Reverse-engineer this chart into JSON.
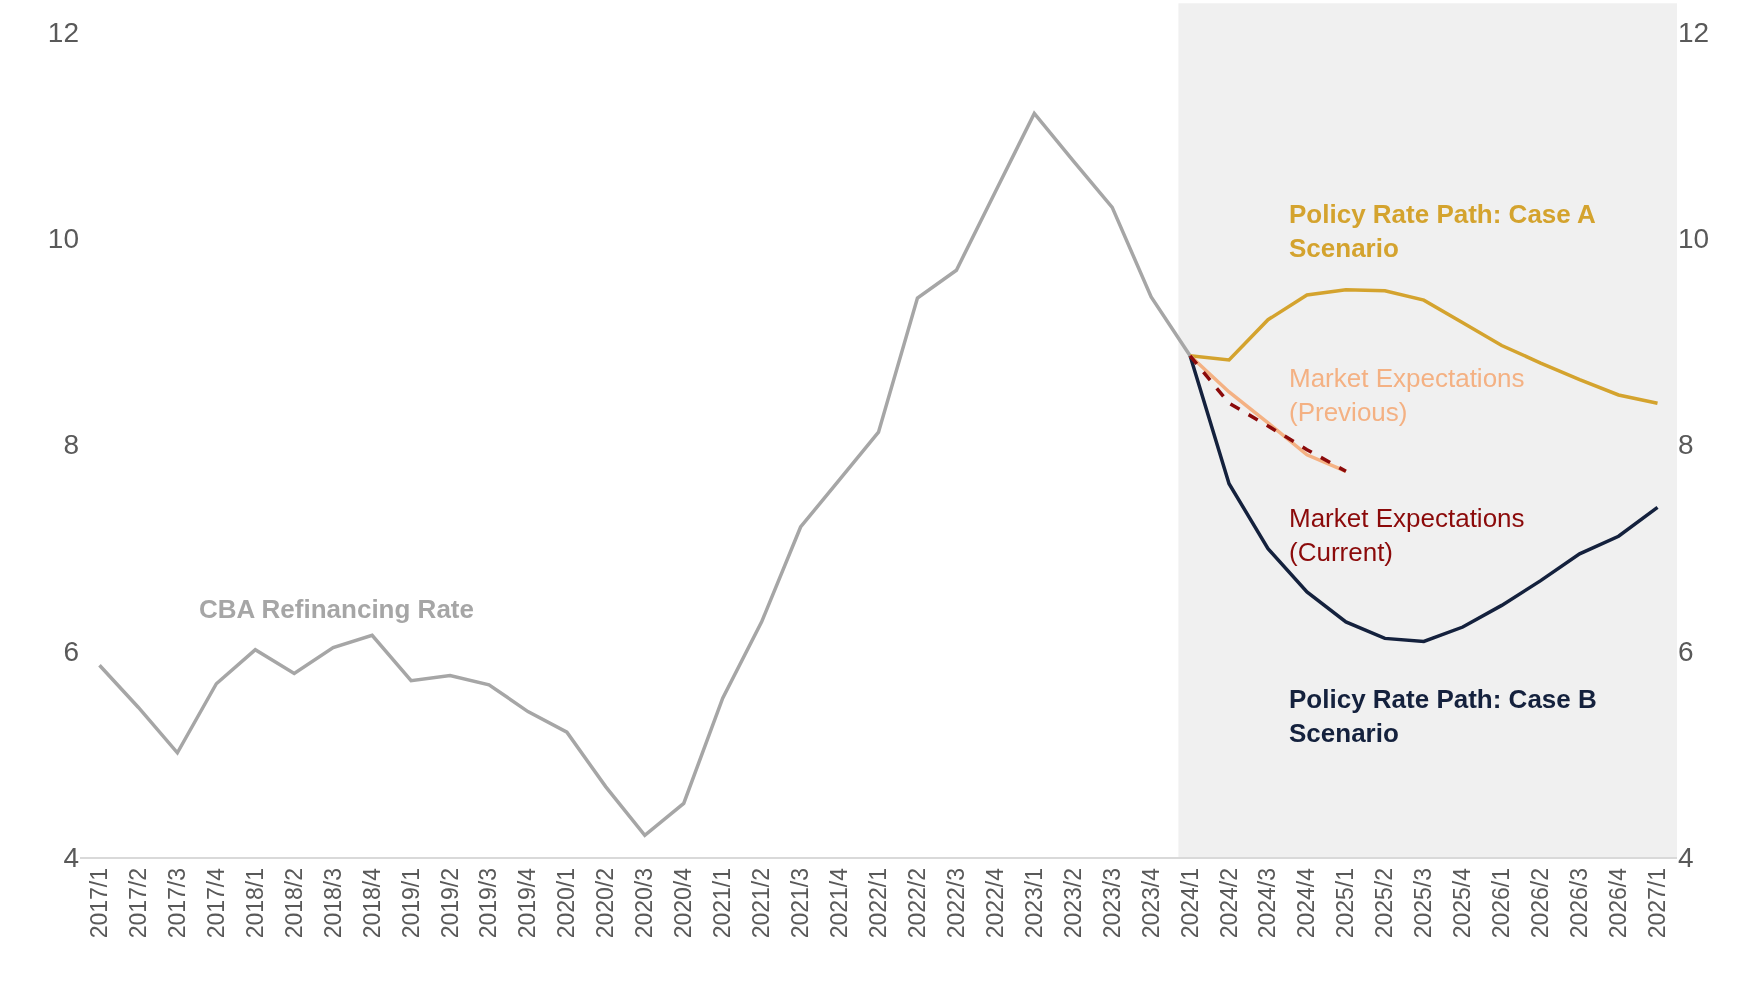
{
  "chart_data": {
    "type": "line",
    "categories": [
      "2017/1",
      "2017/2",
      "2017/3",
      "2017/4",
      "2018/1",
      "2018/2",
      "2018/3",
      "2018/4",
      "2019/1",
      "2019/2",
      "2019/3",
      "2019/4",
      "2020/1",
      "2020/2",
      "2020/3",
      "2020/4",
      "2021/1",
      "2021/2",
      "2021/3",
      "2021/4",
      "2022/1",
      "2022/2",
      "2022/3",
      "2022/4",
      "2023/1",
      "2023/2",
      "2023/3",
      "2023/4",
      "2024/1",
      "2024/2",
      "2024/3",
      "2024/4",
      "2025/1",
      "2025/2",
      "2025/3",
      "2025/4",
      "2026/1",
      "2026/2",
      "2026/3",
      "2026/4",
      "2027/1"
    ],
    "series": [
      {
        "name": "CBA Refinancing Rate",
        "color": "#a6a6a6",
        "values": [
          5.86,
          5.45,
          5.01,
          5.68,
          6.01,
          5.78,
          6.03,
          6.15,
          5.71,
          5.76,
          5.67,
          5.41,
          5.21,
          4.68,
          4.21,
          4.52,
          5.54,
          6.28,
          7.2,
          7.66,
          8.12,
          9.42,
          9.69,
          10.45,
          11.21,
          10.75,
          10.3,
          9.43,
          8.86,
          null,
          null,
          null,
          null,
          null,
          null,
          null,
          null,
          null,
          null,
          null,
          null
        ]
      },
      {
        "name": "Policy Rate Path: Case A Scenario",
        "color": "#d4a32e",
        "values": [
          null,
          null,
          null,
          null,
          null,
          null,
          null,
          null,
          null,
          null,
          null,
          null,
          null,
          null,
          null,
          null,
          null,
          null,
          null,
          null,
          null,
          null,
          null,
          null,
          null,
          null,
          null,
          null,
          8.86,
          8.82,
          9.21,
          9.45,
          9.5,
          9.49,
          9.4,
          9.18,
          8.96,
          8.79,
          8.63,
          8.48,
          8.4
        ]
      },
      {
        "name": "Policy Rate Path: Case B Scenario",
        "color": "#14213d",
        "values": [
          null,
          null,
          null,
          null,
          null,
          null,
          null,
          null,
          null,
          null,
          null,
          null,
          null,
          null,
          null,
          null,
          null,
          null,
          null,
          null,
          null,
          null,
          null,
          null,
          null,
          null,
          null,
          null,
          8.86,
          7.62,
          6.99,
          6.57,
          6.28,
          6.12,
          6.09,
          6.23,
          6.44,
          6.68,
          6.94,
          7.11,
          7.39
        ]
      },
      {
        "name": "Market Expectations (Previous)",
        "color": "#f4b183",
        "values": [
          null,
          null,
          null,
          null,
          null,
          null,
          null,
          null,
          null,
          null,
          null,
          null,
          null,
          null,
          null,
          null,
          null,
          null,
          null,
          null,
          null,
          null,
          null,
          null,
          null,
          null,
          null,
          null,
          8.86,
          8.51,
          8.21,
          7.9,
          7.74,
          null,
          null,
          null,
          null,
          null,
          null,
          null,
          null
        ]
      },
      {
        "name": "Market Expectations (Current)",
        "color": "#8b0a0a",
        "line_style": "dashed",
        "values": [
          null,
          null,
          null,
          null,
          null,
          null,
          null,
          null,
          null,
          null,
          null,
          null,
          null,
          null,
          null,
          null,
          null,
          null,
          null,
          null,
          null,
          null,
          null,
          null,
          null,
          null,
          null,
          null,
          8.86,
          8.4,
          8.18,
          7.95,
          7.74,
          null,
          null,
          null,
          null,
          null,
          null,
          null,
          null
        ]
      }
    ],
    "ylim": [
      4,
      12
    ],
    "yticks": [
      4,
      6,
      8,
      10,
      12
    ],
    "y2lim": [
      4,
      12
    ],
    "y2ticks": [
      4,
      6,
      8,
      10,
      12
    ],
    "bands": [
      {
        "axis": "x",
        "from": "2024/1",
        "to": "2027/1",
        "color": "#f0f0f0"
      }
    ],
    "grid": false,
    "legend": false,
    "marker": "none"
  }
}
